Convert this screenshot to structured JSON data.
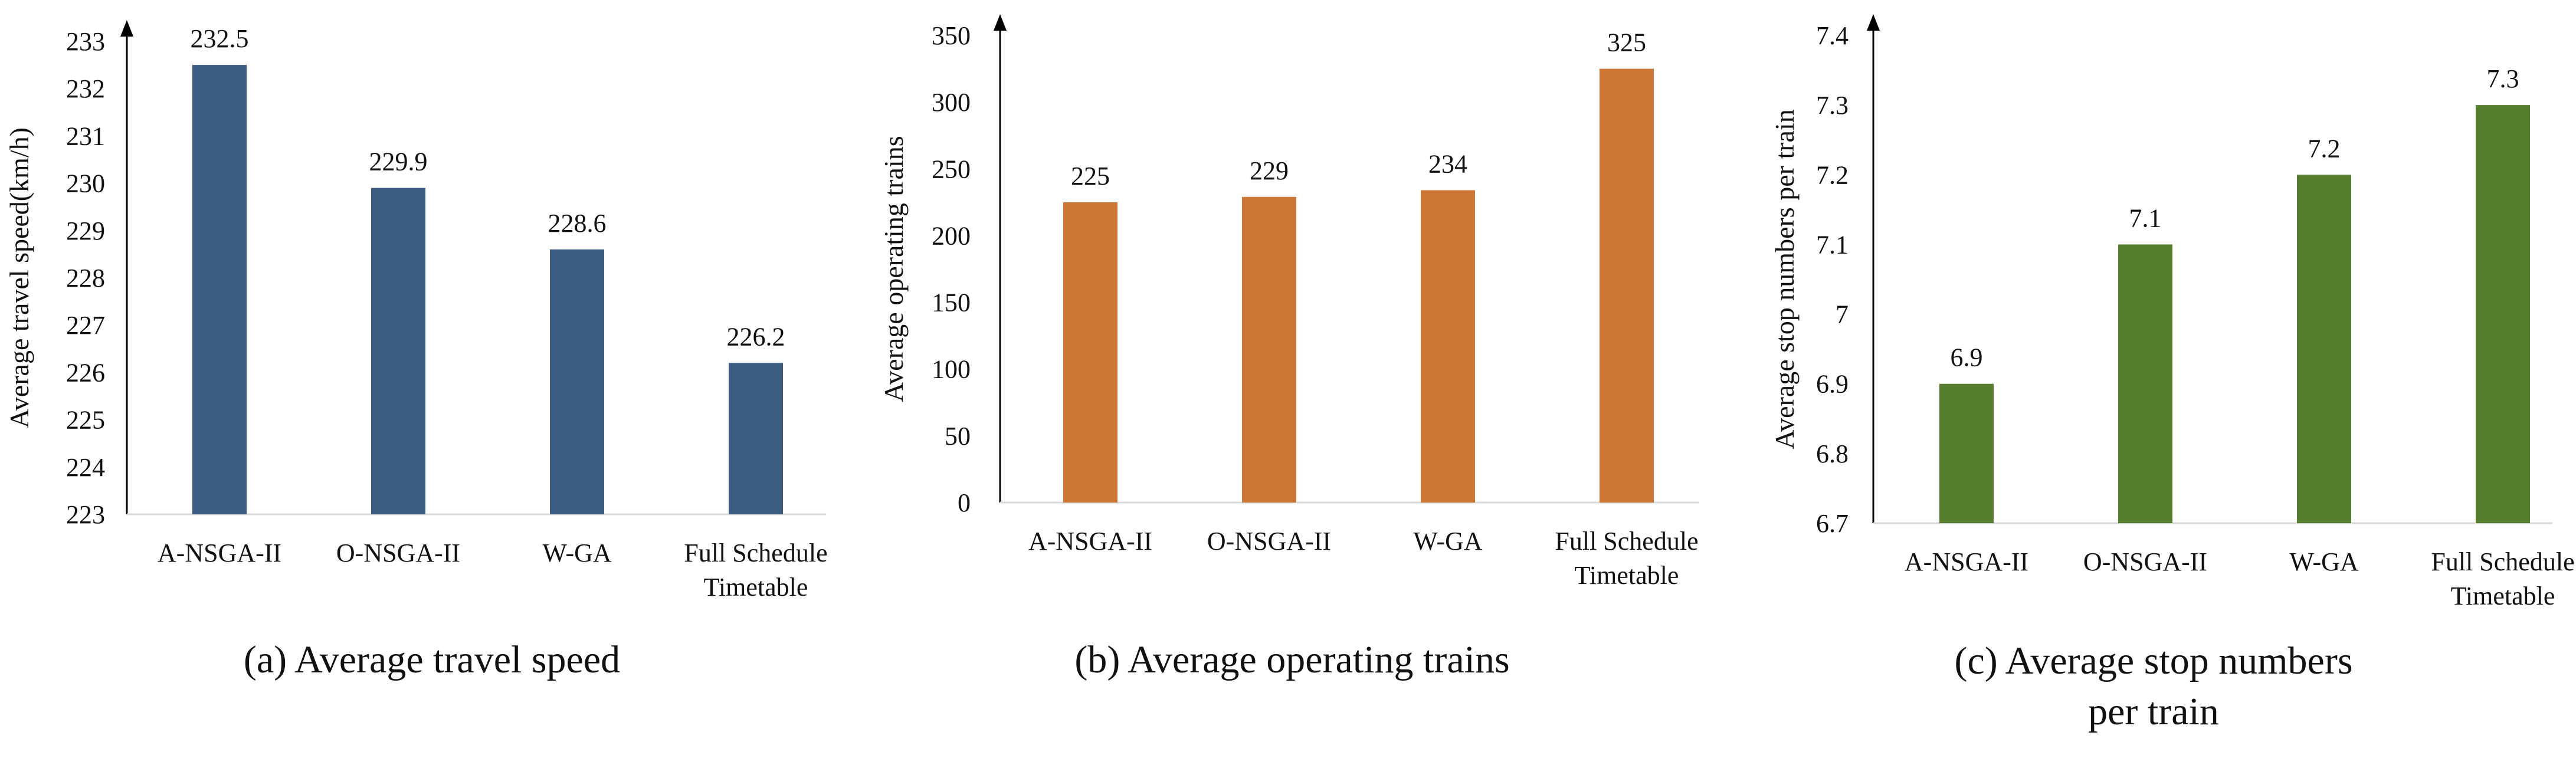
{
  "chart_data": [
    {
      "type": "bar",
      "caption": [
        "(a) Average travel speed"
      ],
      "title": "",
      "xlabel": "",
      "ylabel": "Average travel speed(km/h)",
      "categories": [
        [
          "A-NSGA-II"
        ],
        [
          "O-NSGA-II"
        ],
        [
          "W-GA"
        ],
        [
          "Full Schedule",
          "Timetable"
        ]
      ],
      "values": [
        232.5,
        229.9,
        228.6,
        226.2
      ],
      "value_labels": [
        "232.5",
        "229.9",
        "228.6",
        "226.2"
      ],
      "ylim": [
        223,
        233
      ],
      "yticks": [
        "223",
        "224",
        "225",
        "226",
        "227",
        "228",
        "229",
        "230",
        "231",
        "232",
        "233"
      ],
      "color": "#3B5C80",
      "grid": false
    },
    {
      "type": "bar",
      "caption": [
        "(b) Average operating trains"
      ],
      "title": "",
      "xlabel": "",
      "ylabel": "Average operating trains",
      "categories": [
        [
          "A-NSGA-II"
        ],
        [
          "O-NSGA-II"
        ],
        [
          "W-GA"
        ],
        [
          "Full Schedule",
          "Timetable"
        ]
      ],
      "values": [
        225,
        229,
        234,
        325
      ],
      "value_labels": [
        "225",
        "229",
        "234",
        "325"
      ],
      "ylim": [
        0,
        350
      ],
      "yticks": [
        "0",
        "50",
        "100",
        "150",
        "200",
        "250",
        "300",
        "350"
      ],
      "color": "#CD7736",
      "grid": false
    },
    {
      "type": "bar",
      "caption": [
        "(c) Average stop numbers",
        "per train"
      ],
      "title": "",
      "xlabel": "",
      "ylabel": "Average stop numbers per train",
      "categories": [
        [
          "A-NSGA-II"
        ],
        [
          "O-NSGA-II"
        ],
        [
          "W-GA"
        ],
        [
          "Full Schedule",
          "Timetable"
        ]
      ],
      "values": [
        6.9,
        7.1,
        7.2,
        7.3
      ],
      "value_labels": [
        "6.9",
        "7.1",
        "7.2",
        "7.3"
      ],
      "ylim": [
        6.7,
        7.4
      ],
      "yticks": [
        "6.7",
        "6.8",
        "6.9",
        "7",
        "7.1",
        "7.2",
        "7.3",
        "7.4"
      ],
      "color": "#567C2D",
      "grid": false
    }
  ]
}
